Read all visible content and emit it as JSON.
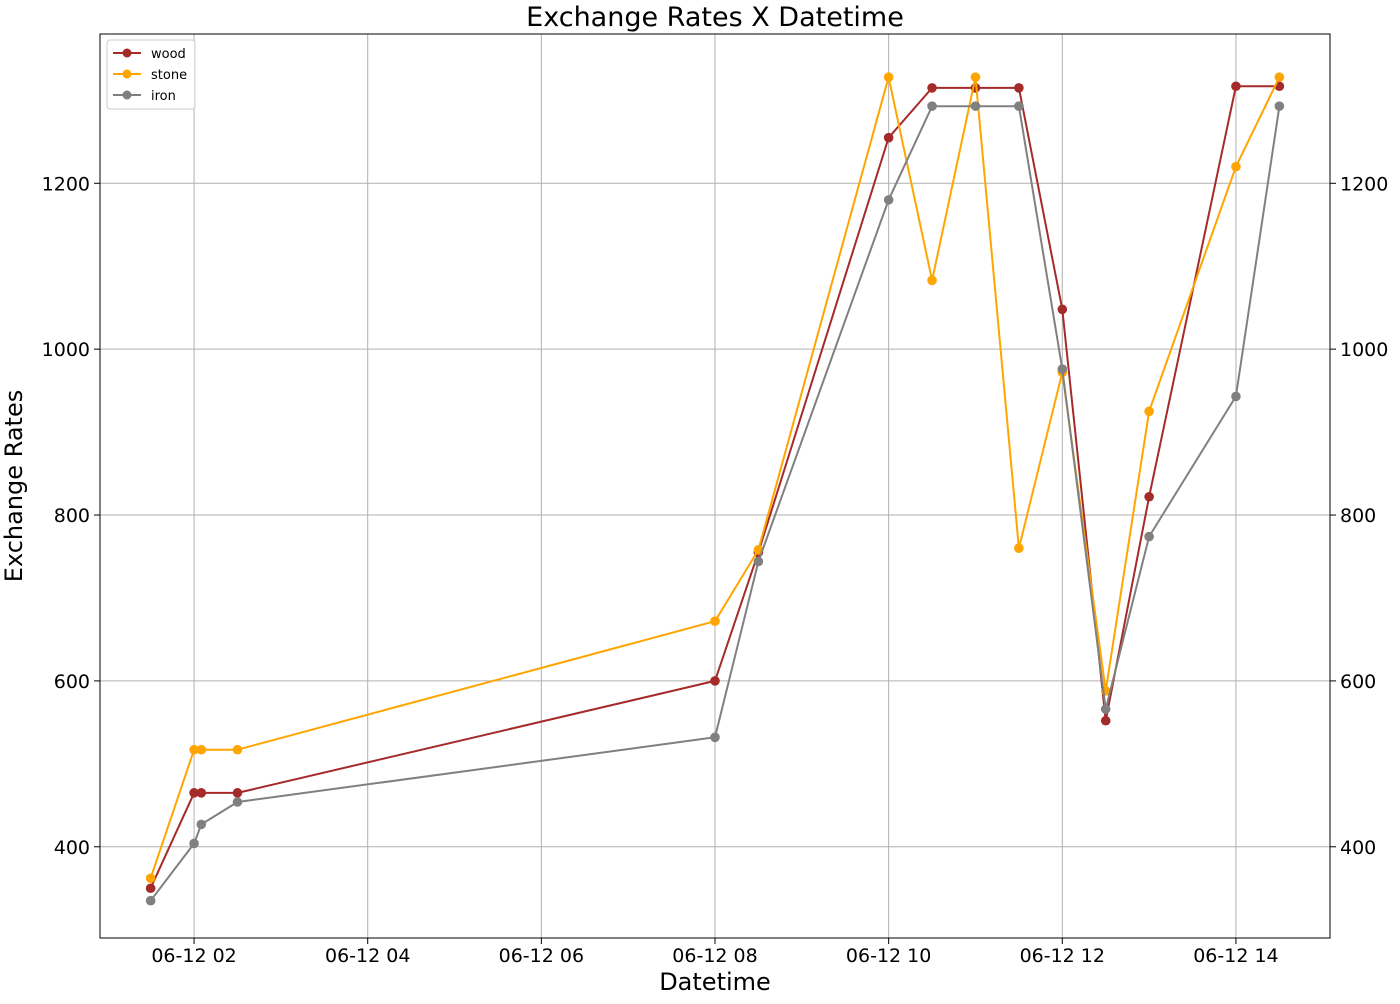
{
  "chart_data": {
    "type": "line",
    "title": "Exchange Rates X Datetime",
    "xlabel": "Datetime",
    "ylabel": "Exchange Rates",
    "x": [
      "2024-06-12 01:30",
      "2024-06-12 02:00",
      "2024-06-12 02:05",
      "2024-06-12 02:30",
      "2024-06-12 08:00",
      "2024-06-12 08:30",
      "2024-06-12 10:00",
      "2024-06-12 10:30",
      "2024-06-12 11:00",
      "2024-06-12 11:30",
      "2024-06-12 12:00",
      "2024-06-12 12:30",
      "2024-06-12 13:00",
      "2024-06-12 14:00",
      "2024-06-12 14:30"
    ],
    "series": [
      {
        "name": "wood",
        "color": "#a52a2a",
        "values": [
          350,
          465,
          465,
          465,
          600,
          755,
          1255,
          1315,
          1315,
          1315,
          1048,
          552,
          822,
          1317,
          1317
        ]
      },
      {
        "name": "stone",
        "color": "#ffa500",
        "values": [
          362,
          517,
          517,
          517,
          672,
          758,
          1328,
          1083,
          1328,
          760,
          972,
          588,
          925,
          1220,
          1328
        ]
      },
      {
        "name": "iron",
        "color": "#808080",
        "values": [
          335,
          404,
          427,
          454,
          532,
          744,
          1180,
          1293,
          1293,
          1293,
          976,
          566,
          774,
          943,
          1293
        ]
      }
    ],
    "xlim": [
      "2024-06-12 00:55",
      "2024-06-12 15:05"
    ],
    "ylim": [
      290,
      1380
    ],
    "x_ticks": [
      {
        "at": "2024-06-12 02:00",
        "label": "06-12 02"
      },
      {
        "at": "2024-06-12 04:00",
        "label": "06-12 04"
      },
      {
        "at": "2024-06-12 06:00",
        "label": "06-12 06"
      },
      {
        "at": "2024-06-12 08:00",
        "label": "06-12 08"
      },
      {
        "at": "2024-06-12 10:00",
        "label": "06-12 10"
      },
      {
        "at": "2024-06-12 12:00",
        "label": "06-12 12"
      },
      {
        "at": "2024-06-12 14:00",
        "label": "06-12 14"
      }
    ],
    "y_ticks": [
      400,
      600,
      800,
      1000,
      1200
    ],
    "y_tick_labels": [
      "400",
      "600",
      "800",
      "1000",
      "1200"
    ],
    "right_axis_tick_labels": true,
    "grid": true,
    "markers": true,
    "legend_position": "top-left"
  }
}
